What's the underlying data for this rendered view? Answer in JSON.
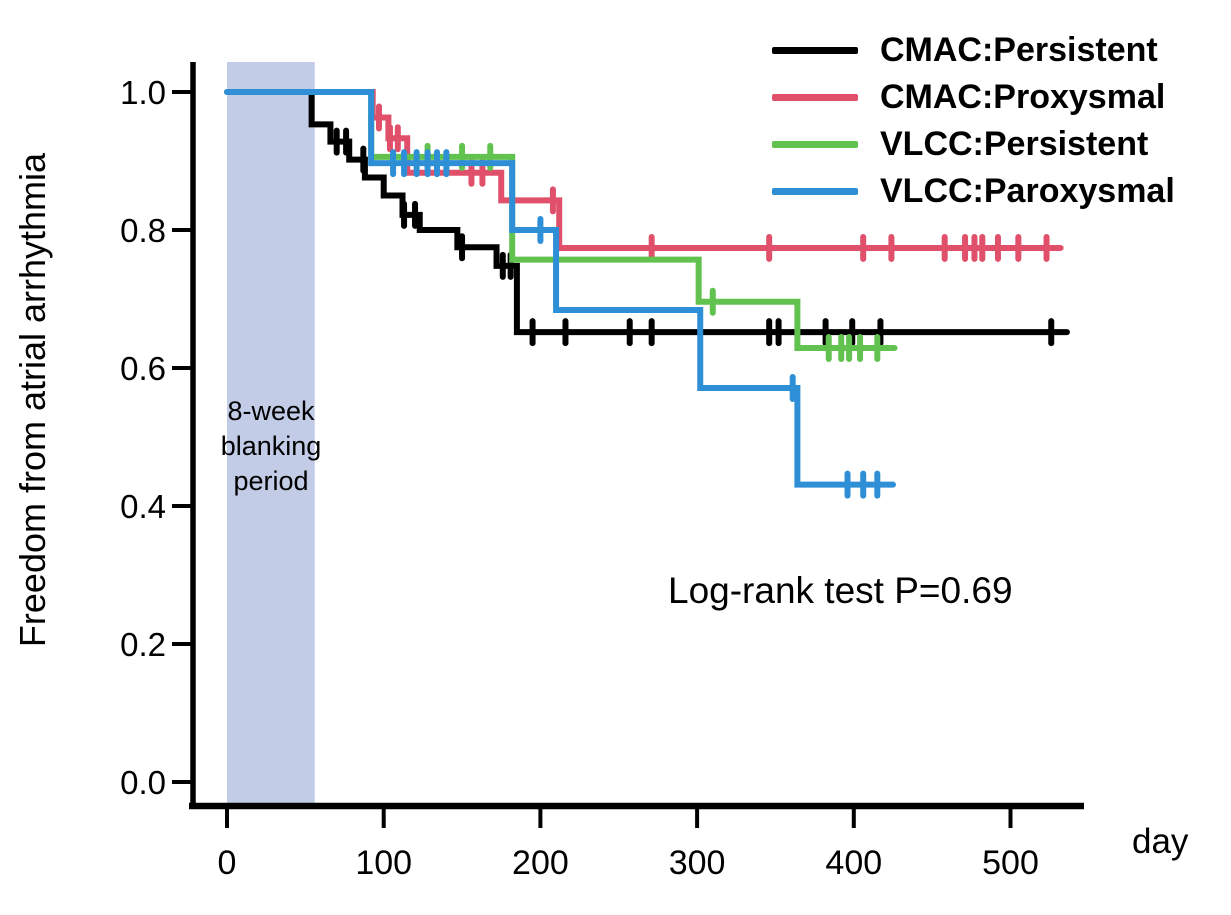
{
  "figure": {
    "y_axis_label": "Freedom from atrial arrhythmia",
    "x_axis_label": "day",
    "stats_annotation": "Log-rank test P=0.69",
    "blanking_band_label": [
      "8-week",
      "blanking",
      "period"
    ]
  },
  "chart_data": {
    "type": "line",
    "subtype": "kaplan-meier-step-curves",
    "title": "",
    "xlabel": "day",
    "ylabel": "Freedom from atrial arrhythmia",
    "xlim": [
      -20,
      555
    ],
    "ylim": [
      0.0,
      1.04
    ],
    "x_ticks": [
      0,
      100,
      200,
      300,
      400,
      500
    ],
    "y_ticks": [
      1.0,
      0.8,
      0.6,
      0.4,
      0.2,
      0.0
    ],
    "grid": false,
    "legend_position": "top-right",
    "annotations": [
      {
        "text": "Log-rank test P=0.69",
        "x_day": 285,
        "y_survival": 0.28
      }
    ],
    "blanking_band": {
      "label": "8-week blanking period",
      "day_start": 0,
      "day_end": 56,
      "color": "#c3cce7"
    },
    "series": [
      {
        "name": "CMAC:Persistent",
        "color": "#000000",
        "steps": [
          [
            0,
            1.0
          ],
          [
            54,
            0.953
          ],
          [
            66,
            0.928
          ],
          [
            78,
            0.902
          ],
          [
            88,
            0.876
          ],
          [
            100,
            0.85
          ],
          [
            112,
            0.822
          ],
          [
            123,
            0.8
          ],
          [
            147,
            0.775
          ],
          [
            172,
            0.748
          ],
          [
            185,
            0.652
          ]
        ],
        "end_day": 536,
        "censor_days": [
          70,
          76,
          87,
          113,
          120,
          150,
          176,
          181,
          195,
          216,
          257,
          271,
          346,
          352,
          382,
          399,
          417,
          526
        ]
      },
      {
        "name": "CMAC:Proxysmal",
        "color": "#e0506a",
        "steps": [
          [
            0,
            1.0
          ],
          [
            93,
            0.963
          ],
          [
            103,
            0.933
          ],
          [
            115,
            0.883
          ],
          [
            175,
            0.843
          ],
          [
            212,
            0.774
          ]
        ],
        "end_day": 532,
        "censor_days": [
          97,
          104,
          109,
          156,
          163,
          208,
          271,
          346,
          406,
          424,
          458,
          471,
          477,
          482,
          492,
          505,
          523
        ]
      },
      {
        "name": "VLCC:Persistent",
        "color": "#62c24f",
        "steps": [
          [
            0,
            1.0
          ],
          [
            92,
            0.906
          ],
          [
            182,
            0.757
          ],
          [
            301,
            0.696
          ],
          [
            364,
            0.629
          ]
        ],
        "end_day": 426,
        "censor_days": [
          128,
          150,
          168,
          310,
          384,
          392,
          397,
          404,
          415
        ]
      },
      {
        "name": "VLCC:Paroxysmal",
        "color": "#2f8fd6",
        "steps": [
          [
            0,
            1.0
          ],
          [
            92,
            0.897
          ],
          [
            182,
            0.8
          ],
          [
            210,
            0.684
          ],
          [
            302,
            0.571
          ],
          [
            364,
            0.431
          ]
        ],
        "end_day": 425,
        "censor_days": [
          106,
          113,
          121,
          128,
          134,
          140,
          200,
          361,
          396,
          406,
          415
        ]
      }
    ]
  }
}
